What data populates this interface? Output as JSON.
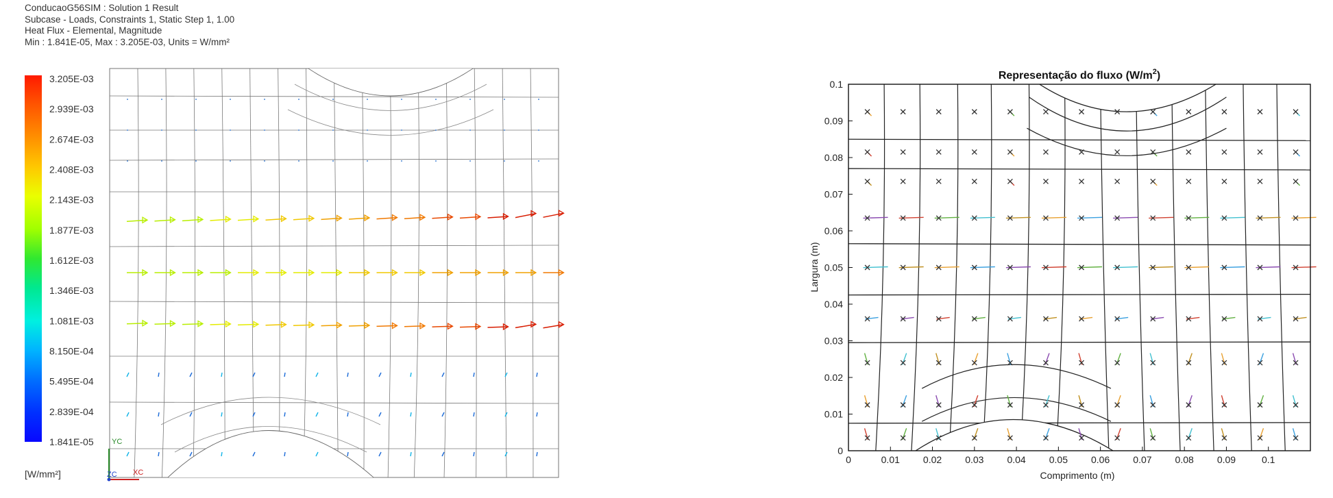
{
  "header": {
    "line1": "ConducaoG56SIM : Solution 1 Result",
    "line2": "Subcase - Loads, Constraints 1, Static Step 1, 1.00",
    "line3": "Heat Flux - Elemental, Magnitude",
    "line4": "Min : 1.841E-05, Max : 3.205E-03, Units = W/mm²"
  },
  "colorbar": {
    "labels": [
      "3.205E-03",
      "2.939E-03",
      "2.674E-03",
      "2.408E-03",
      "2.143E-03",
      "1.877E-03",
      "1.612E-03",
      "1.346E-03",
      "1.081E-03",
      "8.150E-04",
      "5.495E-04",
      "2.839E-04",
      "1.841E-05"
    ],
    "units": "[W/mm²]",
    "colors": [
      "#ff1a00",
      "#ff6a00",
      "#ffa000",
      "#ffd200",
      "#f0ff00",
      "#b4ff00",
      "#50f000",
      "#00e878",
      "#00ffd0",
      "#00c8ff",
      "#0078ff",
      "#0038ff",
      "#0a0aff"
    ]
  },
  "triad": {
    "yc": "YC",
    "zc": "ZC",
    "xc": "XC"
  },
  "right_chart": {
    "title_main": "Representação do fluxo (W/m",
    "title_sup": "2",
    "title_close": ")"
  },
  "chart_data": {
    "type": "scatter",
    "xlabel": "Comprimento (m)",
    "ylabel": "Largura (m)",
    "xlim": [
      0,
      0.11
    ],
    "ylim": [
      0,
      0.1
    ],
    "xticks": [
      "0",
      "0.01",
      "0.02",
      "0.03",
      "0.04",
      "0.05",
      "0.06",
      "0.07",
      "0.08",
      "0.09",
      "0.1"
    ],
    "yticks": [
      "0",
      "0.01",
      "0.02",
      "0.03",
      "0.04",
      "0.05",
      "0.06",
      "0.07",
      "0.08",
      "0.09",
      "0.1"
    ],
    "xtick_values": [
      0,
      0.01,
      0.02,
      0.03,
      0.04,
      0.05,
      0.06,
      0.07,
      0.08,
      0.09,
      0.1
    ],
    "ytick_values": [
      0,
      0.01,
      0.02,
      0.03,
      0.04,
      0.05,
      0.06,
      0.07,
      0.08,
      0.09,
      0.1
    ]
  }
}
